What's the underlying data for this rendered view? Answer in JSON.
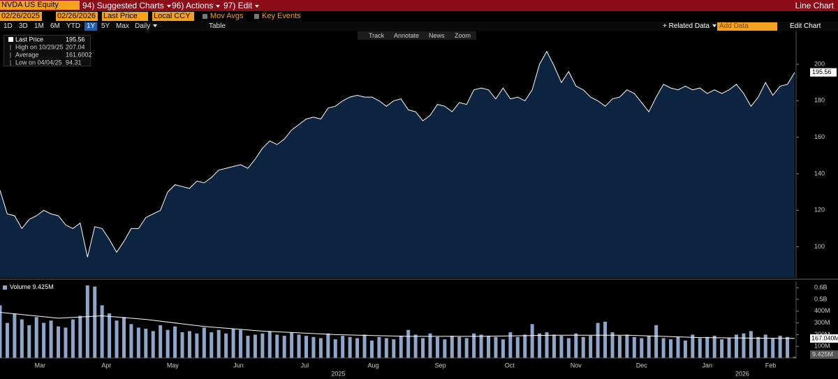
{
  "toolbar": {
    "security": "NVDA US Equity",
    "menus": [
      "94) Suggested Charts",
      "96) Actions",
      "97) Edit"
    ],
    "mode": "Line Chart",
    "start_date": "02/26/2025",
    "end_date": "02/26/2026",
    "field": "Last Price",
    "currency": "Local CCY",
    "toggles": [
      "Mov Avgs",
      "Key Events"
    ],
    "periods": [
      "1D",
      "3D",
      "1M",
      "6M",
      "YTD",
      "1Y",
      "5Y",
      "Max"
    ],
    "active_period": "1Y",
    "frequency": "Daily",
    "table": "Table",
    "tools": [
      "Track",
      "Annotate",
      "News",
      "Zoom"
    ],
    "related": "Related Data",
    "add_data": "Add Data",
    "edit": "Edit Chart"
  },
  "chart_data": [
    {
      "type": "area",
      "xlim": [
        0,
        109
      ],
      "ylim": [
        83,
        218
      ],
      "yticks": [
        100,
        120,
        140,
        160,
        180,
        200
      ],
      "series": [
        {
          "name": "Last Price",
          "color": "#ffffff",
          "fill": "#0c2440",
          "values": [
            131,
            118,
            117,
            110,
            115,
            117,
            120,
            118,
            117,
            112,
            110,
            113,
            94.31,
            111,
            110,
            104,
            97,
            103,
            110,
            110,
            116,
            118,
            120,
            130,
            134,
            133,
            132,
            136,
            135,
            138,
            142,
            143,
            144,
            145,
            143,
            148,
            154,
            158,
            156,
            159,
            164,
            167,
            170,
            171,
            170,
            176,
            177,
            180,
            182,
            183,
            182,
            182,
            180,
            177,
            180,
            181,
            175,
            174,
            169,
            172,
            178,
            177,
            174,
            179,
            178,
            186,
            187,
            186,
            181,
            187,
            181,
            182,
            180,
            186,
            200,
            207.04,
            199,
            190,
            196,
            188,
            186,
            182,
            180,
            177,
            181,
            182,
            186,
            184,
            179,
            174,
            182,
            189,
            187,
            186,
            188,
            186,
            187,
            184,
            186,
            184,
            186,
            189,
            184,
            177,
            182,
            190,
            183,
            188,
            189,
            195.56
          ]
        }
      ],
      "stats": [
        {
          "label": "Last Price",
          "value": 195.56
        },
        {
          "label": "High on 10/29/25",
          "value": 207.04
        },
        {
          "label": "Average",
          "value": 161.6002
        },
        {
          "label": "Low on 04/04/25",
          "value": 94.31
        }
      ]
    },
    {
      "type": "bar",
      "xlim": [
        0,
        109
      ],
      "ylim": [
        0,
        655
      ],
      "yticks": [
        {
          "value": 100,
          "label": "100M"
        },
        {
          "value": 200,
          "label": "200M"
        },
        {
          "value": 300,
          "label": "300M"
        },
        {
          "value": 400,
          "label": "400M"
        },
        {
          "value": 500,
          "label": "0.5B"
        },
        {
          "value": 600,
          "label": "0.6B"
        }
      ],
      "series": [
        {
          "name": "Volume",
          "color": "#8ea5cc",
          "value_label": "9.425M",
          "values": [
            450,
            300,
            380,
            330,
            280,
            350,
            300,
            320,
            270,
            260,
            330,
            360,
            620,
            610,
            450,
            380,
            320,
            350,
            290,
            260,
            250,
            230,
            280,
            240,
            270,
            220,
            230,
            210,
            260,
            220,
            240,
            210,
            250,
            240,
            190,
            200,
            210,
            230,
            200,
            190,
            220,
            200,
            190,
            180,
            170,
            210,
            160,
            190,
            180,
            170,
            200,
            150,
            180,
            170,
            160,
            190,
            240,
            200,
            170,
            210,
            180,
            160,
            190,
            180,
            170,
            210,
            200,
            190,
            180,
            160,
            220,
            180,
            200,
            290,
            210,
            220,
            200,
            190,
            170,
            210,
            180,
            190,
            300,
            310,
            220,
            190,
            200,
            180,
            170,
            190,
            280,
            170,
            160,
            180,
            150,
            200,
            170,
            180,
            190,
            160,
            170,
            200,
            210,
            230,
            180,
            200,
            170,
            190,
            180,
            9.425
          ]
        },
        {
          "color": "#ffffff",
          "value_label": "167.040M",
          "x": [
            0,
            8,
            14,
            20,
            28,
            36,
            46,
            56,
            66,
            76,
            86,
            96,
            104,
            109
          ],
          "values": [
            390,
            340,
            360,
            330,
            270,
            230,
            200,
            185,
            185,
            195,
            195,
            175,
            170,
            167.04
          ]
        }
      ],
      "xticks": [
        {
          "value": 5.5,
          "label": "Mar"
        },
        {
          "value": 14.6,
          "label": "Apr"
        },
        {
          "value": 23.7,
          "label": "May"
        },
        {
          "value": 32.7,
          "label": "Jun"
        },
        {
          "value": 41.8,
          "label": "Jul"
        },
        {
          "value": 51.2,
          "label": "Aug"
        },
        {
          "value": 60.4,
          "label": "Sep"
        },
        {
          "value": 69.9,
          "label": "Oct"
        },
        {
          "value": 79,
          "label": "Nov"
        },
        {
          "value": 88,
          "label": "Dec"
        },
        {
          "value": 97,
          "label": "Jan"
        },
        {
          "value": 105.7,
          "label": "Feb"
        }
      ],
      "year_labels": [
        {
          "value": 46.4,
          "label": "2025"
        },
        {
          "value": 101.8,
          "label": "2026"
        }
      ]
    }
  ]
}
